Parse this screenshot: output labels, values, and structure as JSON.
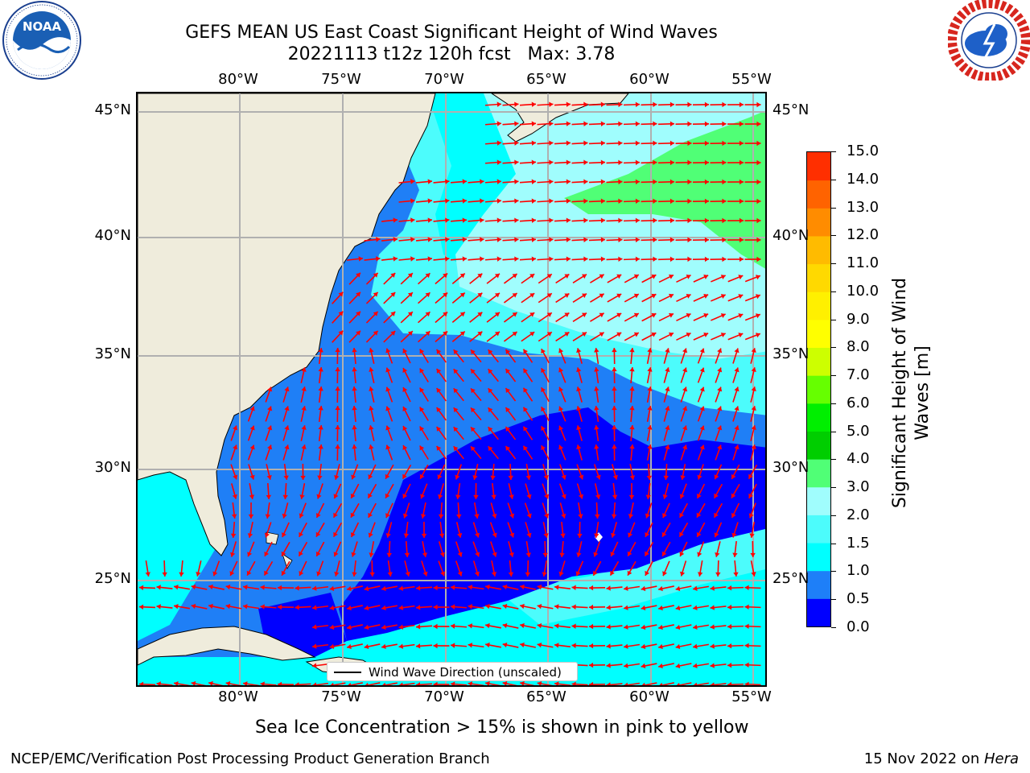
{
  "header": {
    "title_line1": "GEFS MEAN US East Coast Significant Height of Wind Waves",
    "title_line2": "20221113 t12z 120h fcst   Max: 3.78"
  },
  "logos": {
    "noaa": {
      "text": "NOAA",
      "ring_text": "NATIONAL OCEANIC AND ATMOSPHERIC ADMINISTRATION · U.S. DEPARTMENT OF COMMERCE"
    },
    "nws": {
      "ring_text": "NATIONAL WEATHER SERVICE"
    }
  },
  "map": {
    "lon_labels": [
      "80°W",
      "75°W",
      "70°W",
      "65°W",
      "60°W",
      "55°W"
    ],
    "lat_labels": [
      "45°N",
      "40°N",
      "35°N",
      "30°N",
      "25°N"
    ],
    "legend_label": "Wind Wave Direction (unscaled)",
    "arrow_color": "#ff0000",
    "land_color": "#efecdc",
    "grid_color": "#b0b0b0"
  },
  "colorbar": {
    "label_line1": "Significant Height of Wind",
    "label_line2": "Waves [m]",
    "ticks": [
      "15.0",
      "14.0",
      "13.0",
      "12.0",
      "11.0",
      "10.0",
      "9.0",
      "8.0",
      "7.0",
      "6.0",
      "5.0",
      "4.0",
      "3.0",
      "2.0",
      "1.5",
      "1.0",
      "0.5",
      "0.0"
    ],
    "colors": [
      "#0000ff",
      "#1e7ff8",
      "#00ffff",
      "#4cfcfc",
      "#a0fdfd",
      "#50ff76",
      "#00ce00",
      "#00ef00",
      "#66ff00",
      "#cdff00",
      "#ffff00",
      "#fff000",
      "#ffd900",
      "#ffbb00",
      "#ff8c00",
      "#ff6300",
      "#ff2f00",
      "#ff0000"
    ]
  },
  "footer": {
    "ice_note": "Sea Ice Concentration > 15% is shown in pink to yellow",
    "branch": "NCEP/EMC/Verification Post Processing Product Generation Branch",
    "date": "15 Nov 2022 on ",
    "machine": "Hera"
  }
}
